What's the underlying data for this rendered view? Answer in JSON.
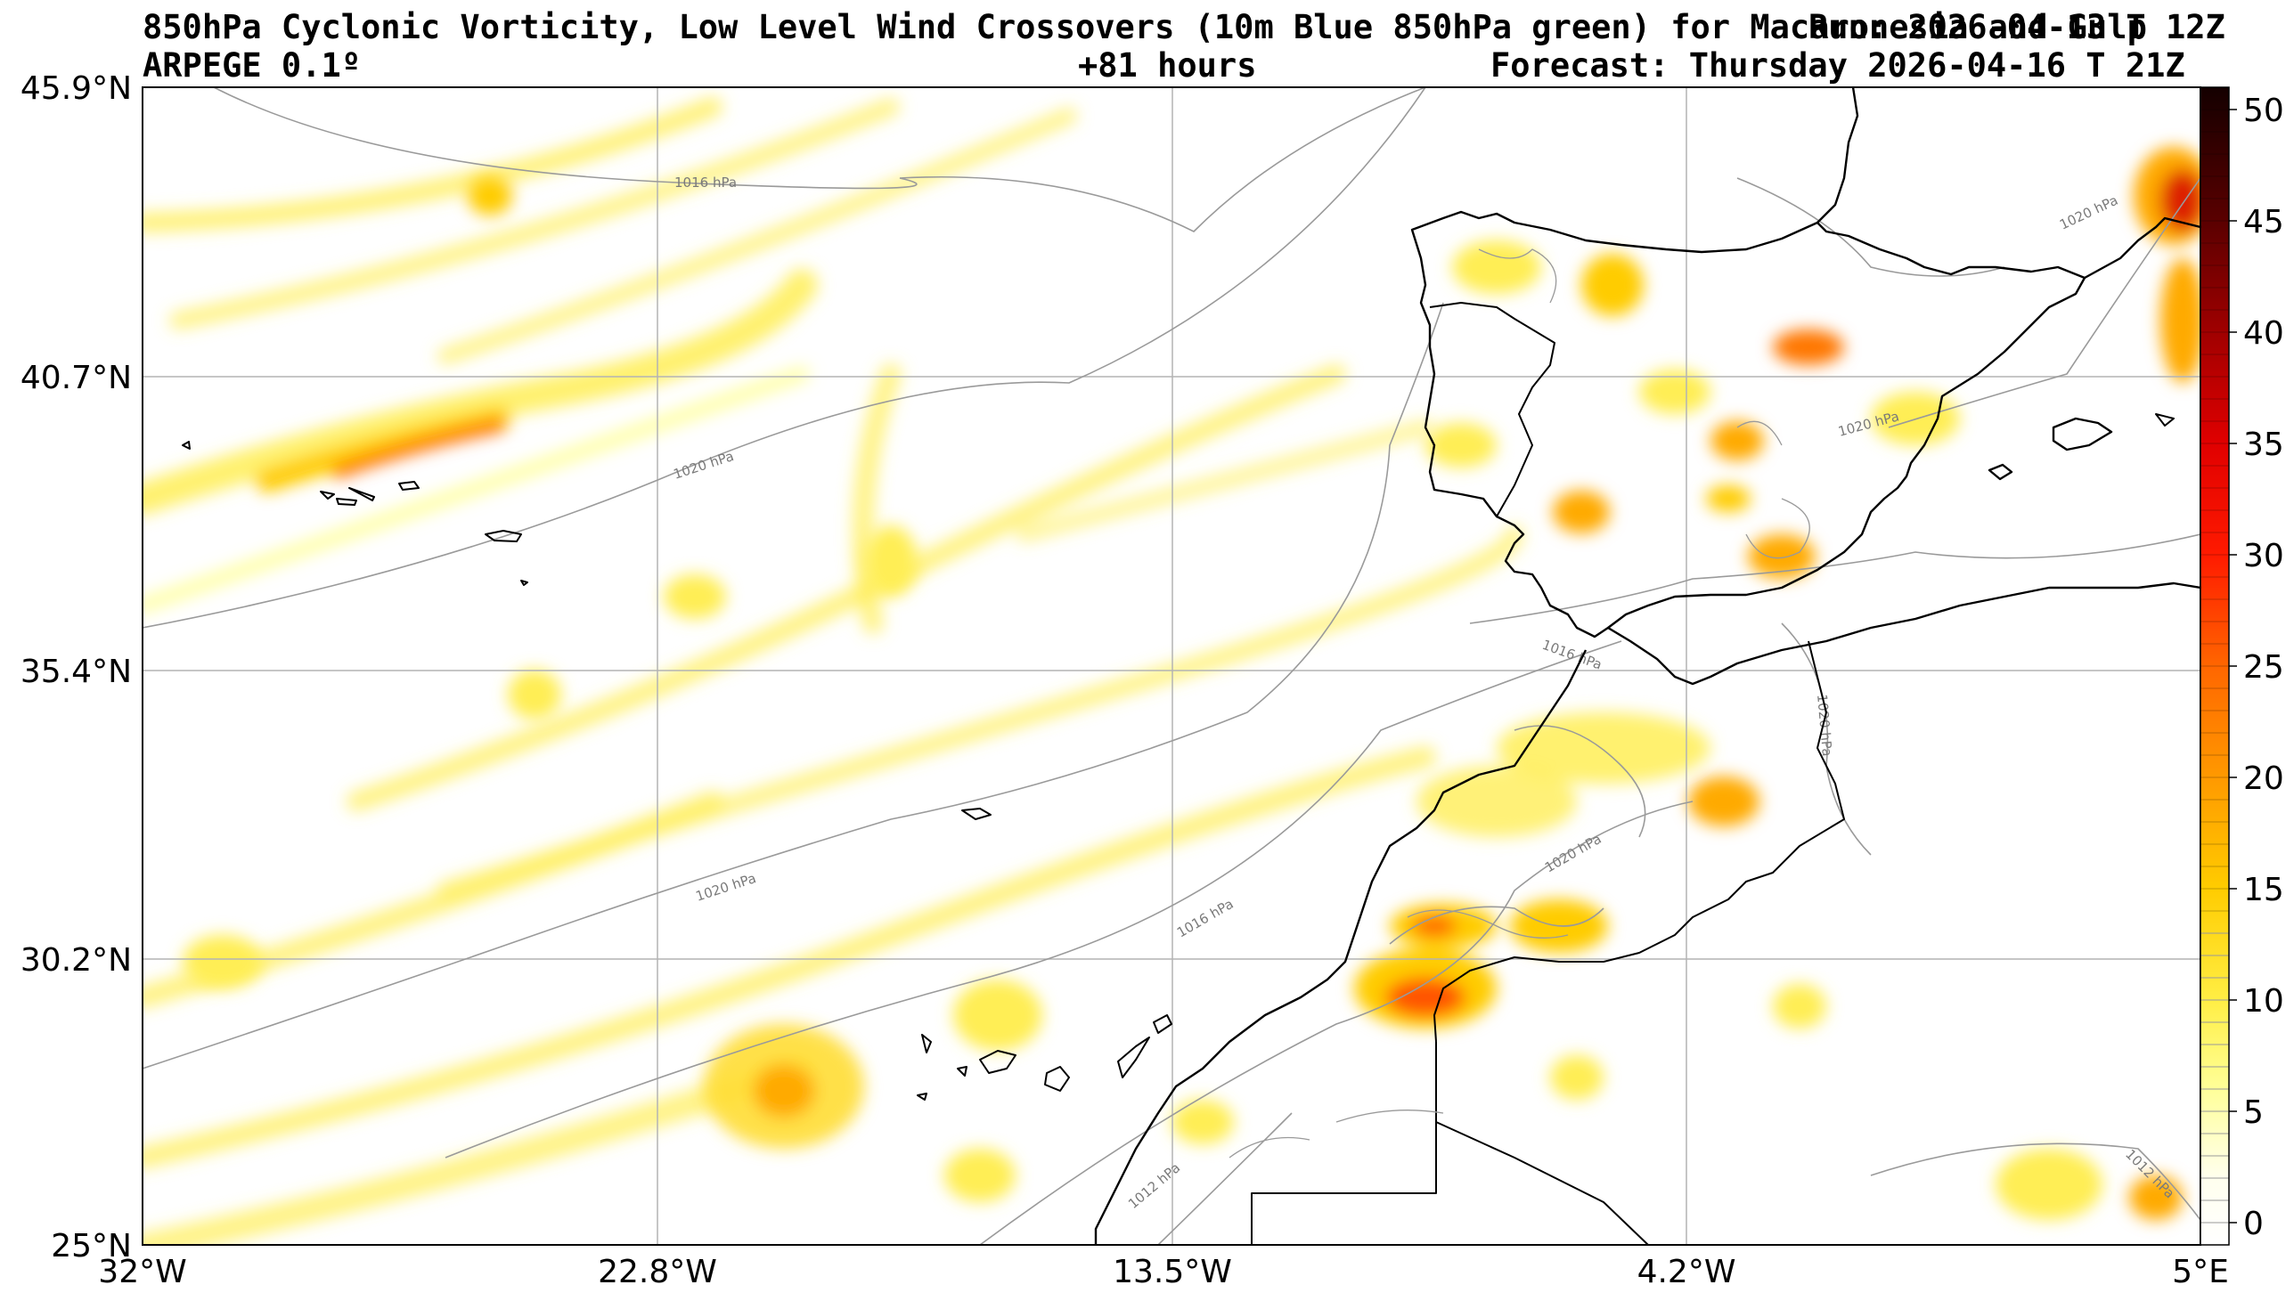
{
  "header": {
    "title_line1": "850hPa Cyclonic Vorticity, Low Level Wind Crossovers (10m Blue 850hPa green) for Macaronesia and Gulp",
    "run_label": "Run: 2026-04-13 T 12Z",
    "model": "ARPEGE 0.1º",
    "lead_time": "+81 hours",
    "forecast": "Forecast: Thursday 2026-04-16 T 21Z"
  },
  "map": {
    "lon_ticks": [
      "32°W",
      "22.8°W",
      "13.5°W",
      "4.2°W",
      "5°E"
    ],
    "lat_ticks": [
      "45.9°N",
      "40.7°N",
      "35.4°N",
      "30.2°N",
      "25°N"
    ],
    "isobar_labels": [
      "1016 hPa",
      "1020 hPa",
      "1020 hPa",
      "1016 hPa",
      "1020 hPa",
      "1016 hPa",
      "1020 hPa",
      "1020 hPa",
      "1012 hPa",
      "1012 hPa",
      "1020 hPa"
    ],
    "colors": {
      "land_outline": "#000000",
      "isobar": "#9a9a9a",
      "grid": "#b0b0b0",
      "vorticity_low": "#ffff66",
      "vorticity_mid": "#ffcc00",
      "vorticity_high": "#ff3300",
      "vorticity_max": "#3a0000"
    }
  },
  "colorbar": {
    "ticks": [
      "50",
      "45",
      "40",
      "35",
      "30",
      "25",
      "20",
      "15",
      "10",
      "5",
      "0"
    ],
    "values": [
      50,
      45,
      40,
      35,
      30,
      25,
      20,
      15,
      10,
      5,
      0
    ],
    "range": [
      -1,
      51
    ],
    "stops": [
      {
        "v": -1,
        "c": "#ffffff"
      },
      {
        "v": 2,
        "c": "#ffffee"
      },
      {
        "v": 6,
        "c": "#ffff99"
      },
      {
        "v": 10,
        "c": "#ffee44"
      },
      {
        "v": 15,
        "c": "#ffcc00"
      },
      {
        "v": 20,
        "c": "#ff9900"
      },
      {
        "v": 25,
        "c": "#ff6600"
      },
      {
        "v": 30,
        "c": "#ff1a00"
      },
      {
        "v": 35,
        "c": "#e00000"
      },
      {
        "v": 40,
        "c": "#a00000"
      },
      {
        "v": 45,
        "c": "#5a0000"
      },
      {
        "v": 51,
        "c": "#140000"
      }
    ]
  }
}
